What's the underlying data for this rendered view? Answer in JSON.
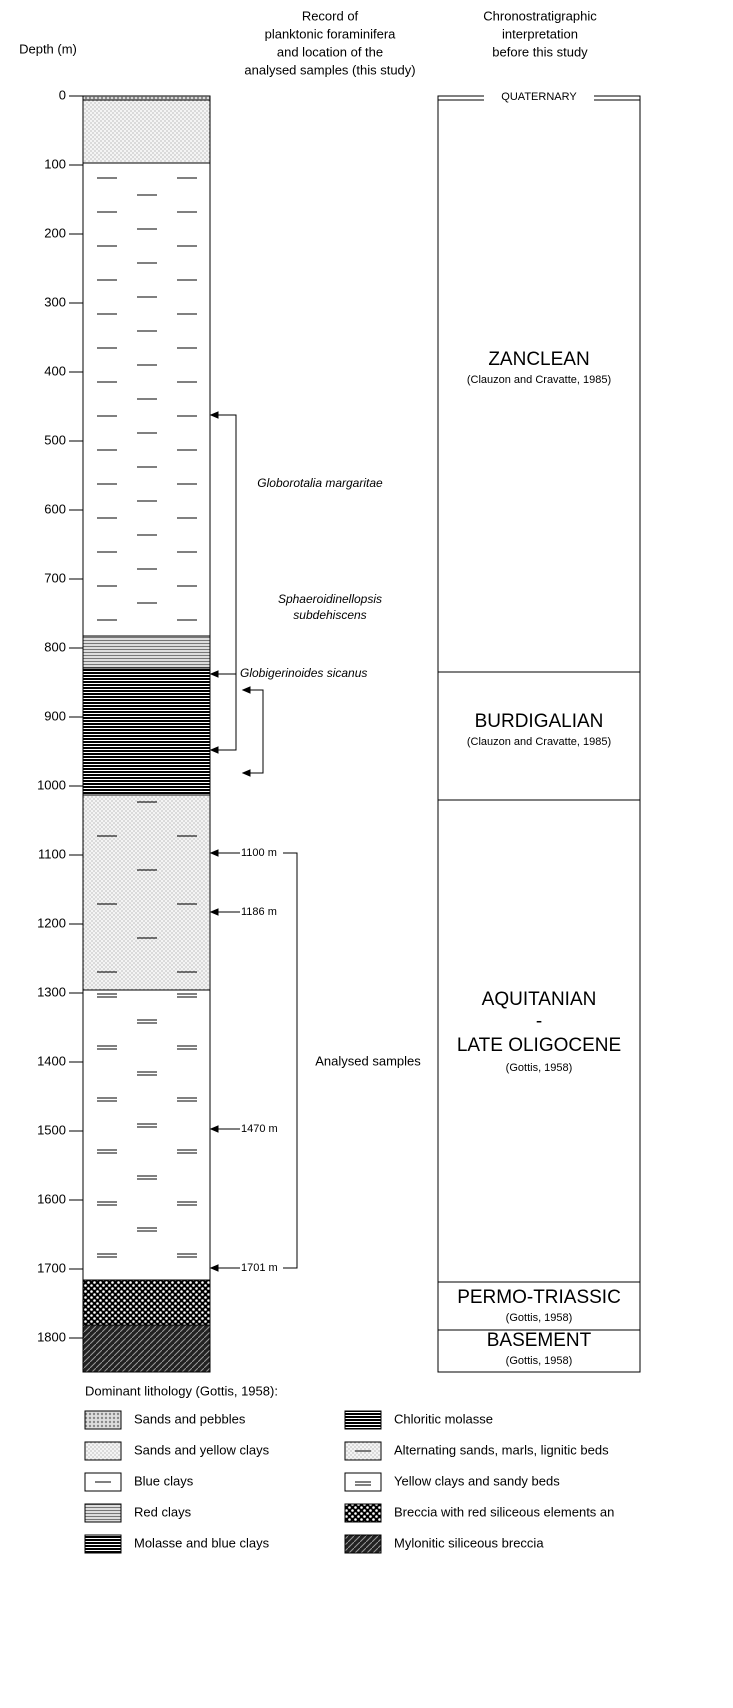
{
  "header": {
    "depth_label": "Depth (m)",
    "record": [
      "Record of",
      "planktonic foraminifera",
      "and location of the",
      "analysed samples (this study)"
    ],
    "chrono": [
      "Chronostratigraphic",
      "interpretation",
      "before this study"
    ]
  },
  "depth_ticks": [
    0,
    100,
    200,
    300,
    400,
    500,
    600,
    700,
    800,
    900,
    1000,
    1100,
    1200,
    1300,
    1400,
    1500,
    1600,
    1700,
    1800
  ],
  "annotations": {
    "globorotalia": "Globorotalia margaritae",
    "sphaeroidinellopsis": [
      "Sphaeroidinellopsis",
      "subdehiscens"
    ],
    "globigerinoides": "Globigerinoides sicanus",
    "samples": [
      "1100 m",
      "1186 m",
      "1470 m",
      "1701 m"
    ],
    "analysed": "Analysed samples"
  },
  "stages": [
    {
      "name": "QUATERNARY"
    },
    {
      "name": "ZANCLEAN",
      "source": "(Clauzon and Cravatte, 1985)"
    },
    {
      "name": "BURDIGALIAN",
      "source": "(Clauzon and Cravatte, 1985)"
    },
    {
      "name": [
        "AQUITANIAN",
        "-",
        "LATE OLIGOCENE"
      ],
      "source": "(Gottis, 1958)"
    },
    {
      "name": "PERMO-TRIASSIC",
      "source": "(Gottis, 1958)"
    },
    {
      "name": "BASEMENT",
      "source": "(Gottis, 1958)"
    }
  ],
  "legend": {
    "title": "Dominant lithology (Gottis, 1958):",
    "items": [
      "Sands and pebbles",
      "Sands and yellow clays",
      "Blue clays",
      "Red clays",
      "Molasse and blue clays",
      "Chloritic molasse",
      "Alternating sands, marls, lignitic beds",
      "Yellow clays and sandy beds",
      "Breccia with red siliceous elements an",
      "Mylonitic siliceous breccia"
    ]
  }
}
